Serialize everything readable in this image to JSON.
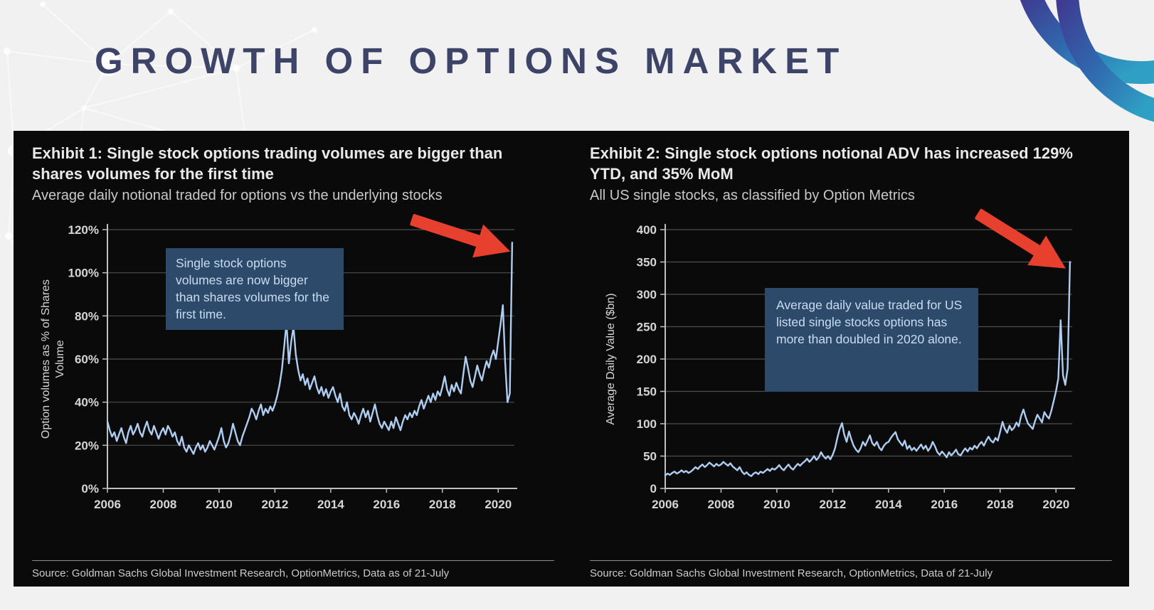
{
  "slide": {
    "title": "GROWTH OF OPTIONS MARKET"
  },
  "colors": {
    "title_navy": "#3d4468",
    "panel_bg": "#0a0a0b",
    "line_blue": "#aecdf0",
    "gridline_gray": "#4e4e4e",
    "axis_gray": "#bfbfbf",
    "annotation_bg": "#2d4a6b",
    "annotation_text": "#c9dcf1",
    "arrow_red": "#e8402f",
    "logo_gradient_start": "#3f3b91",
    "logo_gradient_end": "#2f9fc4"
  },
  "chart_data": [
    {
      "type": "line",
      "title": "Exhibit 1: Single stock options trading volumes are bigger than shares volumes for the first time",
      "subtitle": "Average daily notional traded for options vs the underlying stocks",
      "ylabel": "Option volumes as % of Shares Volume",
      "annotation": "Single stock options volumes are now bigger than shares volumes for the first time.",
      "source": "Source: Goldman Sachs Global Investment Research, OptionMetrics, Data as of 21-July",
      "ylim": [
        0,
        120
      ],
      "yticks": [
        0,
        20,
        40,
        60,
        80,
        100,
        120
      ],
      "ytick_suffix": "%",
      "xticks": [
        2006,
        2008,
        2010,
        2012,
        2014,
        2016,
        2018,
        2020
      ],
      "x_range": [
        2006,
        2020.58
      ],
      "x_start": 2006.0,
      "points_per_year": 12,
      "grid": true,
      "legend": false,
      "values": [
        31,
        27,
        24,
        26,
        22,
        25,
        28,
        24,
        21,
        26,
        29,
        25,
        27,
        30,
        26,
        24,
        28,
        31,
        27,
        25,
        29,
        26,
        23,
        26,
        28,
        25,
        29,
        27,
        24,
        26,
        22,
        20,
        24,
        19,
        17,
        20,
        18,
        16,
        19,
        21,
        18,
        20,
        17,
        19,
        22,
        20,
        18,
        21,
        24,
        28,
        22,
        19,
        21,
        25,
        30,
        26,
        22,
        20,
        24,
        27,
        30,
        33,
        37,
        35,
        32,
        36,
        39,
        34,
        37,
        35,
        38,
        36,
        39,
        43,
        48,
        55,
        66,
        77,
        58,
        68,
        75,
        62,
        55,
        50,
        53,
        48,
        51,
        46,
        49,
        52,
        47,
        44,
        47,
        43,
        46,
        42,
        45,
        47,
        43,
        40,
        44,
        38,
        36,
        40,
        34,
        32,
        35,
        33,
        30,
        34,
        37,
        33,
        36,
        31,
        35,
        39,
        34,
        30,
        28,
        31,
        29,
        27,
        31,
        28,
        33,
        30,
        27,
        31,
        34,
        32,
        35,
        33,
        36,
        34,
        38,
        41,
        37,
        40,
        43,
        40,
        44,
        41,
        45,
        43,
        47,
        52,
        46,
        43,
        48,
        45,
        49,
        46,
        44,
        53,
        61,
        56,
        50,
        47,
        52,
        57,
        53,
        50,
        55,
        59,
        56,
        61,
        64,
        60,
        68,
        76,
        85,
        58,
        40,
        44,
        114
      ]
    },
    {
      "type": "line",
      "title": "Exhibit 2: Single stock options notional ADV has increased 129% YTD, and 35% MoM",
      "subtitle": "All US single stocks, as classified by Option Metrics",
      "ylabel": "Average Daily Value ($bn)",
      "annotation": "Average daily value traded for US listed single stocks options has more than doubled in 2020 alone.",
      "source": "Source: Goldman Sachs Global Investment Research, OptionMetrics, Data of 21-July",
      "ylim": [
        0,
        400
      ],
      "yticks": [
        0,
        50,
        100,
        150,
        200,
        250,
        300,
        350,
        400
      ],
      "ytick_suffix": "",
      "xticks": [
        2006,
        2008,
        2010,
        2012,
        2014,
        2016,
        2018,
        2020
      ],
      "x_range": [
        2006,
        2020.58
      ],
      "x_start": 2006.0,
      "points_per_year": 12,
      "grid": true,
      "legend": false,
      "values": [
        20,
        23,
        21,
        24,
        26,
        23,
        25,
        28,
        25,
        27,
        24,
        26,
        29,
        33,
        30,
        34,
        37,
        33,
        36,
        40,
        37,
        34,
        38,
        35,
        37,
        41,
        38,
        35,
        39,
        34,
        31,
        28,
        33,
        26,
        22,
        25,
        21,
        19,
        23,
        25,
        22,
        26,
        24,
        27,
        30,
        27,
        31,
        29,
        32,
        36,
        31,
        28,
        33,
        37,
        32,
        29,
        34,
        38,
        35,
        39,
        42,
        46,
        41,
        45,
        50,
        44,
        48,
        56,
        50,
        46,
        50,
        45,
        52,
        62,
        78,
        92,
        101,
        83,
        72,
        88,
        76,
        66,
        60,
        56,
        62,
        72,
        66,
        74,
        82,
        70,
        66,
        72,
        63,
        59,
        66,
        70,
        72,
        78,
        83,
        87,
        76,
        71,
        66,
        74,
        61,
        66,
        59,
        63,
        58,
        63,
        68,
        61,
        66,
        58,
        63,
        72,
        65,
        56,
        52,
        57,
        53,
        48,
        56,
        51,
        55,
        60,
        53,
        51,
        57,
        62,
        57,
        63,
        60,
        66,
        62,
        68,
        72,
        66,
        74,
        80,
        74,
        71,
        78,
        74,
        88,
        103,
        92,
        86,
        97,
        90,
        94,
        102,
        96,
        112,
        122,
        110,
        100,
        96,
        92,
        104,
        114,
        108,
        102,
        118,
        112,
        108,
        120,
        135,
        150,
        170,
        260,
        175,
        160,
        185,
        350
      ]
    }
  ]
}
